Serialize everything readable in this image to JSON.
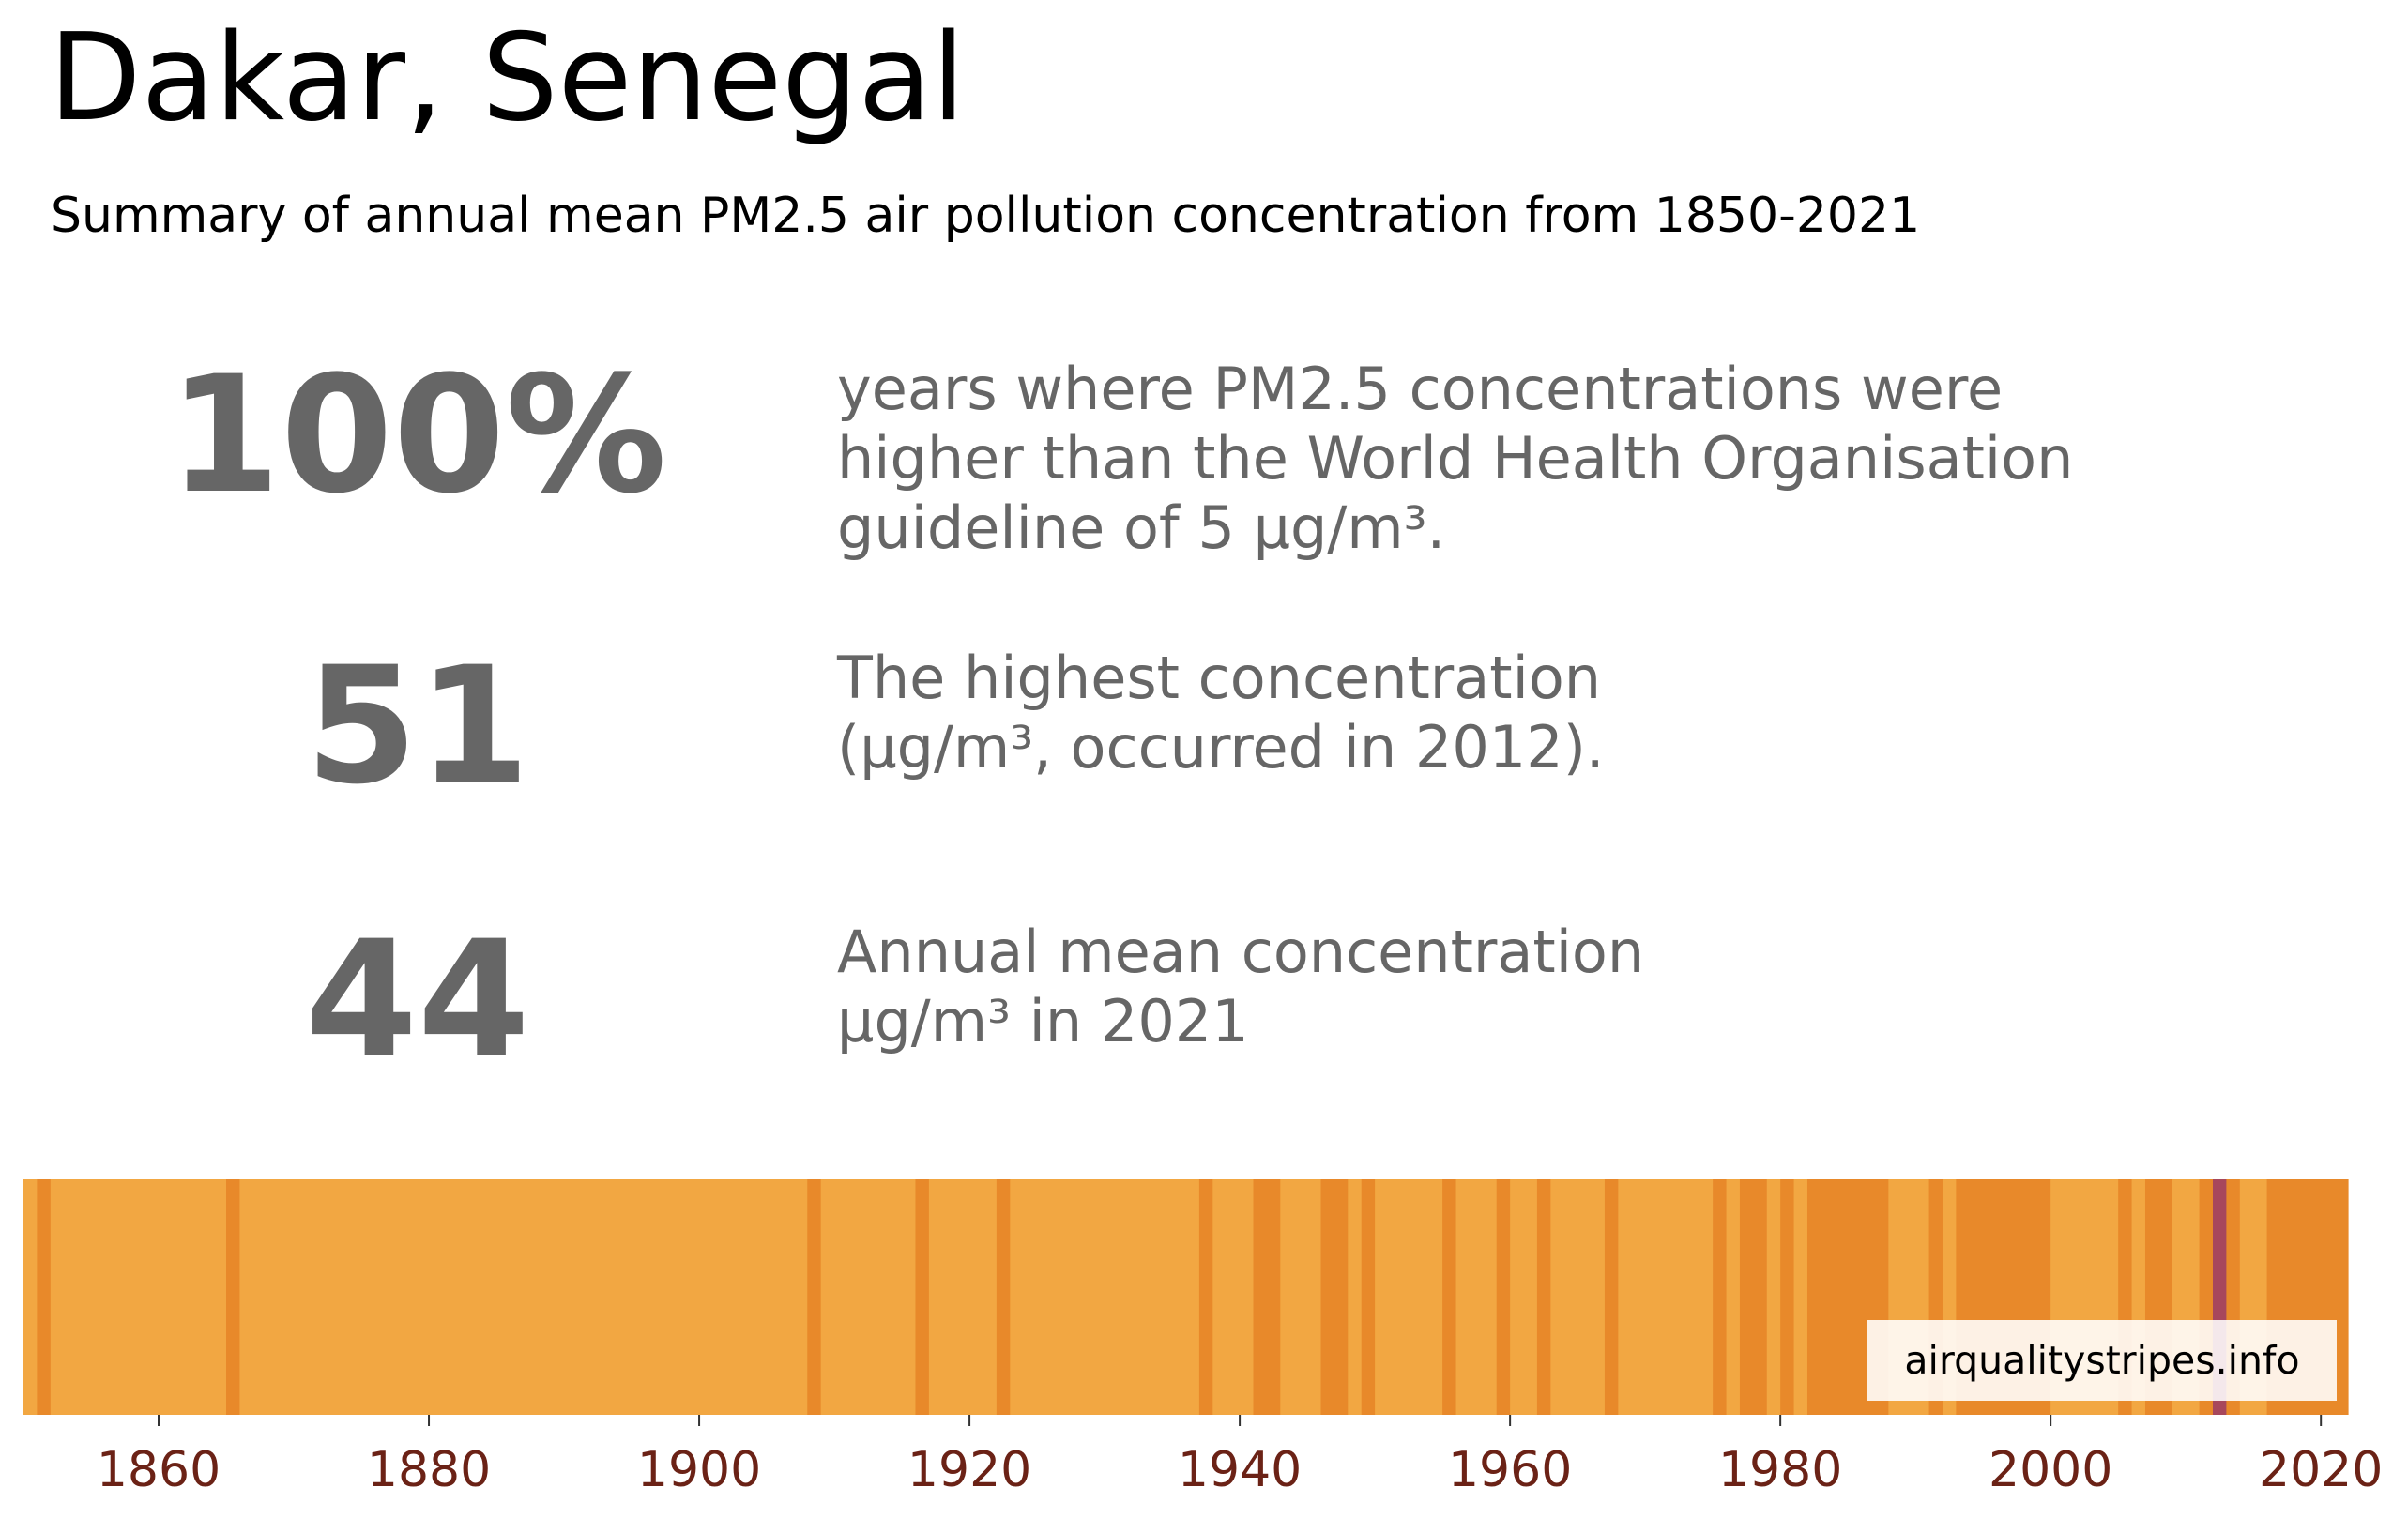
{
  "title": "Dakar, Senegal",
  "subtitle": "Summary of annual mean PM2.5 air pollution concentration from 1850-2021",
  "stats": [
    {
      "value": "100%",
      "lines": [
        "years where PM2.5 concentrations were",
        "higher than the World Health Organisation",
        "guideline of 5 µg/m³."
      ]
    },
    {
      "value": "51",
      "lines": [
        "The highest concentration",
        "(µg/m³, occurred in 2012)."
      ]
    },
    {
      "value": "44",
      "lines": [
        "Annual mean concentration",
        "µg/m³ in 2021"
      ]
    }
  ],
  "credit": "airqualitystripes.info",
  "colors": {
    "base": "#F2A742",
    "dark": "#E8892A",
    "peak": "#A7475C",
    "tick_label": "#6B2216",
    "stat_text": "#666666"
  },
  "chart_data": {
    "type": "heatmap",
    "x_range": [
      1850,
      2022
    ],
    "x_ticks": [
      "1860",
      "1880",
      "1900",
      "1920",
      "1940",
      "1960",
      "1980",
      "2000",
      "2020"
    ],
    "color_levels": [
      "base",
      "dark",
      "peak"
    ],
    "stripes": [
      {
        "from": 1850,
        "to": 1851,
        "level": "base"
      },
      {
        "from": 1851,
        "to": 1852,
        "level": "dark"
      },
      {
        "from": 1852,
        "to": 1865,
        "level": "base"
      },
      {
        "from": 1865,
        "to": 1866,
        "level": "dark"
      },
      {
        "from": 1866,
        "to": 1908,
        "level": "base"
      },
      {
        "from": 1908,
        "to": 1909,
        "level": "dark"
      },
      {
        "from": 1909,
        "to": 1916,
        "level": "base"
      },
      {
        "from": 1916,
        "to": 1917,
        "level": "dark"
      },
      {
        "from": 1917,
        "to": 1922,
        "level": "base"
      },
      {
        "from": 1922,
        "to": 1923,
        "level": "dark"
      },
      {
        "from": 1923,
        "to": 1937,
        "level": "base"
      },
      {
        "from": 1937,
        "to": 1938,
        "level": "dark"
      },
      {
        "from": 1938,
        "to": 1941,
        "level": "base"
      },
      {
        "from": 1941,
        "to": 1943,
        "level": "dark"
      },
      {
        "from": 1943,
        "to": 1946,
        "level": "base"
      },
      {
        "from": 1946,
        "to": 1948,
        "level": "dark"
      },
      {
        "from": 1948,
        "to": 1949,
        "level": "base"
      },
      {
        "from": 1949,
        "to": 1950,
        "level": "dark"
      },
      {
        "from": 1950,
        "to": 1955,
        "level": "base"
      },
      {
        "from": 1955,
        "to": 1956,
        "level": "dark"
      },
      {
        "from": 1956,
        "to": 1959,
        "level": "base"
      },
      {
        "from": 1959,
        "to": 1960,
        "level": "dark"
      },
      {
        "from": 1960,
        "to": 1962,
        "level": "base"
      },
      {
        "from": 1962,
        "to": 1963,
        "level": "dark"
      },
      {
        "from": 1963,
        "to": 1967,
        "level": "base"
      },
      {
        "from": 1967,
        "to": 1968,
        "level": "dark"
      },
      {
        "from": 1968,
        "to": 1975,
        "level": "base"
      },
      {
        "from": 1975,
        "to": 1976,
        "level": "dark"
      },
      {
        "from": 1976,
        "to": 1977,
        "level": "base"
      },
      {
        "from": 1977,
        "to": 1979,
        "level": "dark"
      },
      {
        "from": 1979,
        "to": 1980,
        "level": "base"
      },
      {
        "from": 1980,
        "to": 1981,
        "level": "dark"
      },
      {
        "from": 1981,
        "to": 1982,
        "level": "base"
      },
      {
        "from": 1982,
        "to": 1988,
        "level": "dark"
      },
      {
        "from": 1988,
        "to": 1991,
        "level": "base"
      },
      {
        "from": 1991,
        "to": 1992,
        "level": "dark"
      },
      {
        "from": 1992,
        "to": 1993,
        "level": "base"
      },
      {
        "from": 1993,
        "to": 2000,
        "level": "dark"
      },
      {
        "from": 2000,
        "to": 2005,
        "level": "base"
      },
      {
        "from": 2005,
        "to": 2006,
        "level": "dark"
      },
      {
        "from": 2006,
        "to": 2007,
        "level": "base"
      },
      {
        "from": 2007,
        "to": 2009,
        "level": "dark"
      },
      {
        "from": 2009,
        "to": 2011,
        "level": "base"
      },
      {
        "from": 2011,
        "to": 2012,
        "level": "dark"
      },
      {
        "from": 2012,
        "to": 2013,
        "level": "peak"
      },
      {
        "from": 2013,
        "to": 2014,
        "level": "dark"
      },
      {
        "from": 2014,
        "to": 2016,
        "level": "base"
      },
      {
        "from": 2016,
        "to": 2022,
        "level": "dark"
      }
    ]
  }
}
